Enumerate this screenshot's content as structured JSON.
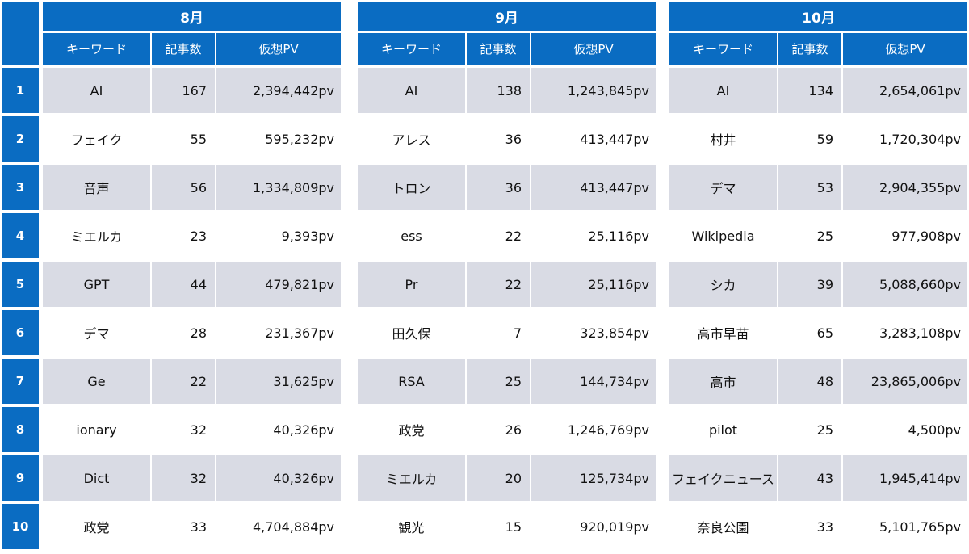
{
  "headers": {
    "keyword": "キーワード",
    "count": "記事数",
    "pv": "仮想PV"
  },
  "ranks": [
    "1",
    "2",
    "3",
    "4",
    "5",
    "6",
    "7",
    "8",
    "9",
    "10"
  ],
  "months": [
    {
      "title": "8月",
      "rows": [
        {
          "keyword": "AI",
          "count": "167",
          "pv": "2,394,442pv"
        },
        {
          "keyword": "フェイク",
          "count": "55",
          "pv": "595,232pv"
        },
        {
          "keyword": "音声",
          "count": "56",
          "pv": "1,334,809pv"
        },
        {
          "keyword": "ミエルカ",
          "count": "23",
          "pv": "9,393pv"
        },
        {
          "keyword": "GPT",
          "count": "44",
          "pv": "479,821pv"
        },
        {
          "keyword": "デマ",
          "count": "28",
          "pv": "231,367pv"
        },
        {
          "keyword": "Ge",
          "count": "22",
          "pv": "31,625pv"
        },
        {
          "keyword": "ionary",
          "count": "32",
          "pv": "40,326pv"
        },
        {
          "keyword": "Dict",
          "count": "32",
          "pv": "40,326pv"
        },
        {
          "keyword": "政党",
          "count": "33",
          "pv": "4,704,884pv"
        }
      ]
    },
    {
      "title": "9月",
      "rows": [
        {
          "keyword": "AI",
          "count": "138",
          "pv": "1,243,845pv"
        },
        {
          "keyword": "アレス",
          "count": "36",
          "pv": "413,447pv"
        },
        {
          "keyword": "トロン",
          "count": "36",
          "pv": "413,447pv"
        },
        {
          "keyword": "ess",
          "count": "22",
          "pv": "25,116pv"
        },
        {
          "keyword": "Pr",
          "count": "22",
          "pv": "25,116pv"
        },
        {
          "keyword": "田久保",
          "count": "7",
          "pv": "323,854pv"
        },
        {
          "keyword": "RSA",
          "count": "25",
          "pv": "144,734pv"
        },
        {
          "keyword": "政党",
          "count": "26",
          "pv": "1,246,769pv"
        },
        {
          "keyword": "ミエルカ",
          "count": "20",
          "pv": "125,734pv"
        },
        {
          "keyword": "観光",
          "count": "15",
          "pv": "920,019pv"
        }
      ]
    },
    {
      "title": "10月",
      "rows": [
        {
          "keyword": "AI",
          "count": "134",
          "pv": "2,654,061pv"
        },
        {
          "keyword": "村井",
          "count": "59",
          "pv": "1,720,304pv"
        },
        {
          "keyword": "デマ",
          "count": "53",
          "pv": "2,904,355pv"
        },
        {
          "keyword": "Wikipedia",
          "count": "25",
          "pv": "977,908pv"
        },
        {
          "keyword": "シカ",
          "count": "39",
          "pv": "5,088,660pv"
        },
        {
          "keyword": "高市早苗",
          "count": "65",
          "pv": "3,283,108pv"
        },
        {
          "keyword": "高市",
          "count": "48",
          "pv": "23,865,006pv"
        },
        {
          "keyword": "pilot",
          "count": "25",
          "pv": "4,500pv"
        },
        {
          "keyword": "フェイクニュース",
          "count": "43",
          "pv": "1,945,414pv"
        },
        {
          "keyword": "奈良公園",
          "count": "33",
          "pv": "5,101,765pv"
        }
      ]
    }
  ]
}
